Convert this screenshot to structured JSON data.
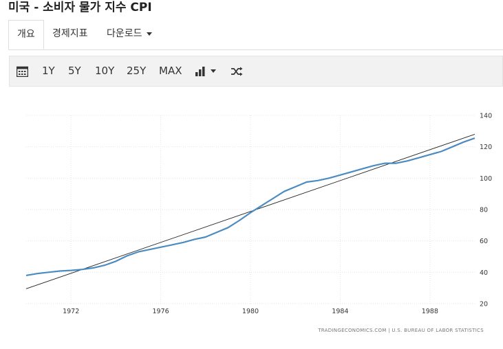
{
  "page": {
    "title": "미국 - 소비자 물가 지수 CPI"
  },
  "tabs": [
    {
      "label": "개요",
      "active": true
    },
    {
      "label": "경제지표",
      "active": false
    },
    {
      "label": "다운로드",
      "active": false
    }
  ],
  "toolbar": {
    "calendar_icon": "calendar-icon",
    "ranges": [
      "1Y",
      "5Y",
      "10Y",
      "25Y",
      "MAX"
    ],
    "chart_type_icon": "bar-chart-icon",
    "shuffle_icon": "shuffle-icon"
  },
  "chart_data": {
    "type": "line",
    "series": [
      {
        "color": "#4a8bc2",
        "x": [
          1970,
          1970.5,
          1971,
          1971.5,
          1972,
          1972.5,
          1973,
          1973.5,
          1974,
          1974.5,
          1975,
          1975.5,
          1976,
          1976.5,
          1977,
          1977.5,
          1978,
          1978.5,
          1979,
          1979.5,
          1980,
          1980.5,
          1981,
          1981.5,
          1982,
          1982.5,
          1983,
          1983.5,
          1984,
          1984.5,
          1985,
          1985.5,
          1986,
          1986.5,
          1987,
          1987.5,
          1988,
          1988.5,
          1989,
          1989.5,
          1990
        ],
        "values": [
          38.0,
          39.2,
          40.0,
          40.8,
          41.2,
          41.8,
          42.8,
          44.5,
          47.0,
          50.5,
          53.0,
          54.5,
          56.0,
          57.5,
          59.0,
          61.0,
          62.5,
          65.5,
          68.5,
          73.0,
          78.0,
          82.5,
          87.0,
          91.5,
          94.5,
          97.5,
          98.5,
          100.0,
          102.0,
          104.0,
          106.0,
          108.0,
          109.5,
          109.5,
          111.0,
          113.0,
          115.0,
          117.0,
          120.0,
          123.0,
          125.5
        ]
      },
      {
        "color": "#222222",
        "x": [
          1970,
          1990
        ],
        "values": [
          29.5,
          128.0
        ]
      }
    ],
    "x_ticks": [
      "1972",
      "1976",
      "1980",
      "1984",
      "1988"
    ],
    "y_ticks": [
      "20",
      "40",
      "60",
      "80",
      "100",
      "120",
      "140"
    ],
    "xlim": [
      1970,
      1990
    ],
    "ylim": [
      20,
      140
    ],
    "grid": true,
    "source": "TRADINGECONOMICS.COM | U.S. BUREAU OF LABOR STATISTICS"
  }
}
